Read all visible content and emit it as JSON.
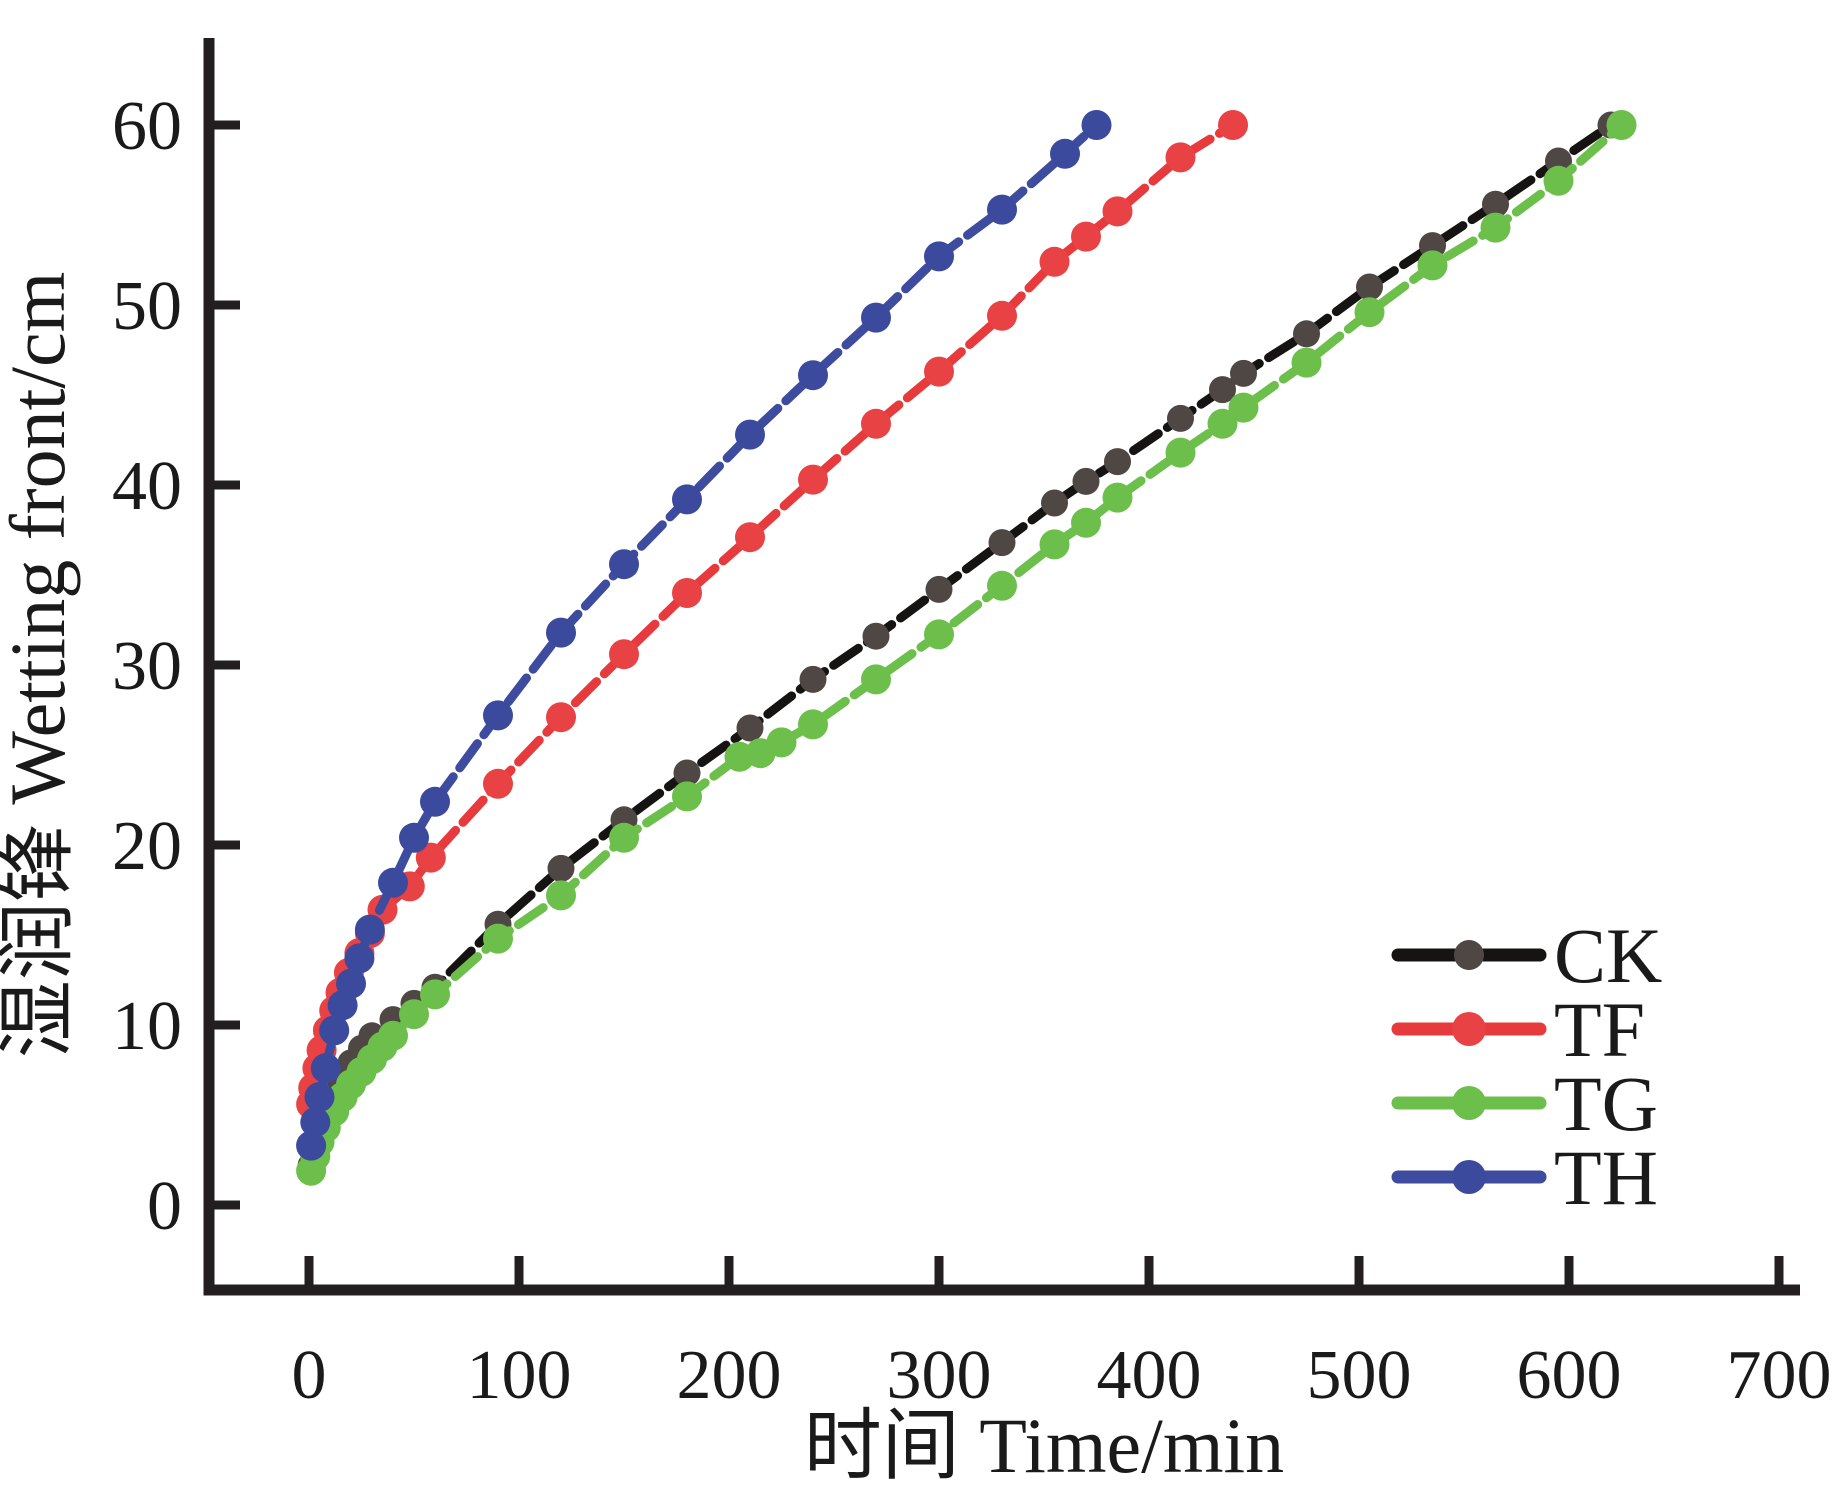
{
  "figure": {
    "background": "#ffffff",
    "axis_color": "#231f20",
    "text_color": "#1a1a1a"
  },
  "axes": {
    "x": {
      "label": "时间 Time/min",
      "ticks": [
        0,
        100,
        200,
        300,
        400,
        500,
        600,
        700
      ],
      "range": [
        0,
        700
      ]
    },
    "y": {
      "label": "湿润锋  Wetting front/cm",
      "ticks": [
        0,
        10,
        20,
        30,
        40,
        50,
        60
      ],
      "range": [
        0,
        60
      ]
    }
  },
  "legend": {
    "position": "lower-right",
    "entries": [
      "CK",
      "TF",
      "TG",
      "TH"
    ]
  },
  "chart_data": {
    "type": "line",
    "title": "",
    "xlabel": "时间 Time/min",
    "ylabel": "湿润锋  Wetting front/cm",
    "xlim": [
      0,
      700
    ],
    "ylim": [
      0,
      60
    ],
    "x_ticks": [
      0,
      100,
      200,
      300,
      400,
      500,
      600,
      700
    ],
    "y_ticks": [
      0,
      10,
      20,
      30,
      40,
      50,
      60
    ],
    "grid": false,
    "legend_position": "lower right",
    "series": [
      {
        "name": "CK",
        "color": "#161412",
        "marker_color": "#4e4744",
        "points": [
          [
            1,
            2.2
          ],
          [
            3,
            3.3
          ],
          [
            5,
            4.2
          ],
          [
            8,
            5.2
          ],
          [
            12,
            6.3
          ],
          [
            16,
            7.2
          ],
          [
            20,
            7.9
          ],
          [
            25,
            8.7
          ],
          [
            30,
            9.4
          ],
          [
            40,
            10.3
          ],
          [
            50,
            11.2
          ],
          [
            60,
            12.1
          ],
          [
            90,
            15.6
          ],
          [
            120,
            18.7
          ],
          [
            150,
            21.4
          ],
          [
            180,
            24.0
          ],
          [
            210,
            26.5
          ],
          [
            240,
            29.2
          ],
          [
            270,
            31.6
          ],
          [
            300,
            34.2
          ],
          [
            330,
            36.8
          ],
          [
            355,
            39.0
          ],
          [
            370,
            40.2
          ],
          [
            385,
            41.3
          ],
          [
            415,
            43.7
          ],
          [
            435,
            45.3
          ],
          [
            445,
            46.2
          ],
          [
            475,
            48.4
          ],
          [
            505,
            51.0
          ],
          [
            535,
            53.3
          ],
          [
            565,
            55.6
          ],
          [
            595,
            58.0
          ],
          [
            620,
            60.0
          ]
        ]
      },
      {
        "name": "TF",
        "color": "#e63a3c",
        "marker_color": "#e84244",
        "points": [
          [
            1,
            5.6
          ],
          [
            2,
            6.5
          ],
          [
            4,
            7.6
          ],
          [
            6,
            8.6
          ],
          [
            9,
            9.7
          ],
          [
            12,
            10.8
          ],
          [
            15,
            11.8
          ],
          [
            19,
            12.9
          ],
          [
            24,
            14.0
          ],
          [
            29,
            15.1
          ],
          [
            35,
            16.4
          ],
          [
            48,
            17.7
          ],
          [
            58,
            19.3
          ],
          [
            90,
            23.4
          ],
          [
            120,
            27.1
          ],
          [
            150,
            30.6
          ],
          [
            180,
            34.0
          ],
          [
            210,
            37.1
          ],
          [
            240,
            40.3
          ],
          [
            270,
            43.4
          ],
          [
            300,
            46.3
          ],
          [
            330,
            49.4
          ],
          [
            355,
            52.4
          ],
          [
            370,
            53.8
          ],
          [
            385,
            55.2
          ],
          [
            415,
            58.2
          ],
          [
            440,
            60.0
          ]
        ]
      },
      {
        "name": "TG",
        "color": "#6cbf4b",
        "marker_color": "#6cbf4b",
        "points": [
          [
            1,
            1.9
          ],
          [
            3,
            2.7
          ],
          [
            5,
            3.5
          ],
          [
            8,
            4.3
          ],
          [
            12,
            5.2
          ],
          [
            16,
            6.0
          ],
          [
            20,
            6.7
          ],
          [
            25,
            7.4
          ],
          [
            30,
            8.1
          ],
          [
            35,
            8.8
          ],
          [
            40,
            9.4
          ],
          [
            50,
            10.6
          ],
          [
            60,
            11.7
          ],
          [
            90,
            14.8
          ],
          [
            120,
            17.2
          ],
          [
            150,
            20.4
          ],
          [
            180,
            22.7
          ],
          [
            205,
            24.9
          ],
          [
            215,
            25.1
          ],
          [
            225,
            25.7
          ],
          [
            240,
            26.7
          ],
          [
            270,
            29.2
          ],
          [
            300,
            31.7
          ],
          [
            330,
            34.4
          ],
          [
            355,
            36.7
          ],
          [
            370,
            37.9
          ],
          [
            385,
            39.3
          ],
          [
            415,
            41.8
          ],
          [
            435,
            43.4
          ],
          [
            445,
            44.3
          ],
          [
            475,
            46.8
          ],
          [
            505,
            49.6
          ],
          [
            535,
            52.2
          ],
          [
            565,
            54.3
          ],
          [
            595,
            56.9
          ],
          [
            625,
            60.0
          ]
        ]
      },
      {
        "name": "TH",
        "color": "#3d4c9e",
        "marker_color": "#3b4a9c",
        "points": [
          [
            1,
            3.3
          ],
          [
            3,
            4.6
          ],
          [
            5,
            6.0
          ],
          [
            8,
            7.6
          ],
          [
            12,
            9.7
          ],
          [
            16,
            11.1
          ],
          [
            20,
            12.3
          ],
          [
            24,
            13.7
          ],
          [
            29,
            15.3
          ],
          [
            40,
            17.9
          ],
          [
            50,
            20.4
          ],
          [
            60,
            22.4
          ],
          [
            90,
            27.2
          ],
          [
            120,
            31.8
          ],
          [
            150,
            35.6
          ],
          [
            180,
            39.2
          ],
          [
            210,
            42.8
          ],
          [
            240,
            46.1
          ],
          [
            270,
            49.3
          ],
          [
            300,
            52.7
          ],
          [
            330,
            55.3
          ],
          [
            360,
            58.4
          ],
          [
            375,
            60.0
          ]
        ]
      }
    ]
  }
}
